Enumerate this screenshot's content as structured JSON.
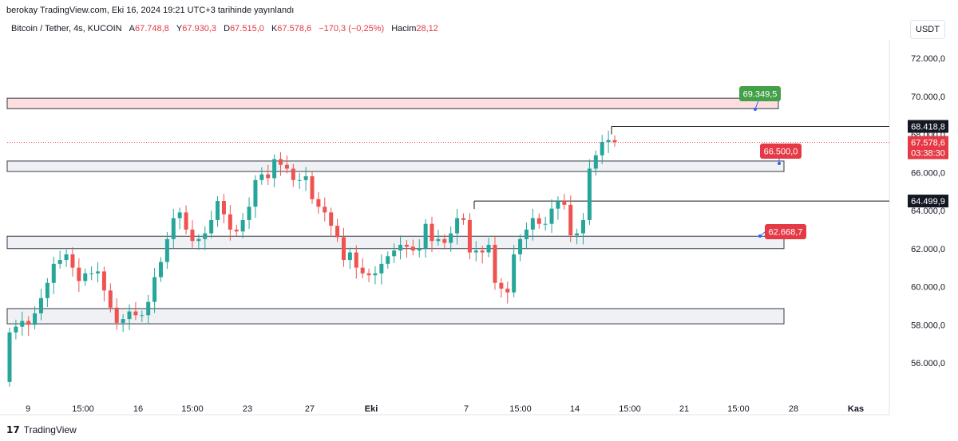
{
  "header": {
    "published": "berokay TradingView.com, Eki 16, 2024 19:21 UTC+3 tarihinde yayınlandı"
  },
  "legend": {
    "symbol": "Bitcoin / Tether, 4s, KUCOIN",
    "open_label": "A",
    "open": "67.748,8",
    "high_label": "Y",
    "high": "67.930,3",
    "low_label": "D",
    "low": "67.515,0",
    "close_label": "K",
    "close": "67.578,6",
    "change": "−170,3 (−0,25%)",
    "volume_label": "Hacim",
    "volume": "28,12"
  },
  "currency_button": "USDT",
  "footer": {
    "brand": "TradingView",
    "logo_glyph": "17"
  },
  "colors": {
    "up": "#26a69a",
    "down": "#ef5350",
    "alert_green": "#43a047",
    "alert_red": "#e53946",
    "resistance_fill": "#fddde0",
    "zone_fill": "#f0f1f5"
  },
  "chart_data": {
    "type": "candlestick",
    "xaxis": {
      "ticks": [
        "9",
        "15:00",
        "16",
        "15:00",
        "23",
        "27",
        "Eki",
        "7",
        "15:00",
        "14",
        "15:00",
        "21",
        "15:00",
        "28",
        "Kas"
      ],
      "bold": [
        "Eki",
        "Kas"
      ]
    },
    "yaxis": {
      "range": [
        54000,
        73000
      ],
      "ticks": [
        "56.000,0",
        "58.000,0",
        "60.000,0",
        "62.000,0",
        "64.000,0",
        "66.000,0",
        "68.000,0",
        "70.000,0",
        "72.000,0"
      ],
      "tick_values": [
        56000,
        58000,
        60000,
        62000,
        64000,
        66000,
        68000,
        70000,
        72000
      ]
    },
    "grid": false,
    "current_price": {
      "label": "67.578,6",
      "countdown": "03:38:30",
      "value": 67578.6
    },
    "price_lines": [
      {
        "label": "68.418,8",
        "value": 68418.8
      },
      {
        "label": "64.499,9",
        "value": 64499.9
      }
    ],
    "zones": [
      {
        "name": "resistance",
        "top": 69900,
        "bottom": 69350
      },
      {
        "name": "zone-66000",
        "top": 66600,
        "bottom": 66050
      },
      {
        "name": "zone-62000",
        "top": 62650,
        "bottom": 62000
      },
      {
        "name": "zone-58000",
        "top": 58850,
        "bottom": 58050
      }
    ],
    "alerts": [
      {
        "label": "69.349,5",
        "value": 69349.5,
        "color": "green"
      },
      {
        "label": "66.500,0",
        "value": 66500.0,
        "color": "red"
      },
      {
        "label": "62.668,7",
        "value": 62668.7,
        "color": "red"
      }
    ],
    "close_series": [
      57600,
      57900,
      58200,
      58000,
      58600,
      59400,
      60200,
      61200,
      61400,
      61700,
      61000,
      60300,
      60700,
      60700,
      60800,
      59800,
      58900,
      58100,
      58300,
      58700,
      58500,
      58500,
      59200,
      60500,
      61300,
      62500,
      63600,
      63900,
      63000,
      62400,
      62500,
      62800,
      63500,
      64500,
      63800,
      63000,
      62900,
      63500,
      64200,
      65600,
      65900,
      65700,
      66700,
      66400,
      66200,
      65600,
      65600,
      65800,
      64600,
      64200,
      63900,
      63200,
      62600,
      61400,
      61800,
      61000,
      60700,
      60600,
      60700,
      61200,
      61600,
      61900,
      62200,
      62100,
      61900,
      62000,
      63300,
      62400,
      62500,
      62300,
      62800,
      63600,
      63500,
      61800,
      61900,
      61800,
      62200,
      60200,
      59900,
      59700,
      61700,
      62500,
      63000,
      63600,
      63300,
      63300,
      64100,
      64500,
      64300,
      62700,
      62800,
      63500,
      66200,
      66900,
      67600,
      67700,
      67600
    ]
  }
}
